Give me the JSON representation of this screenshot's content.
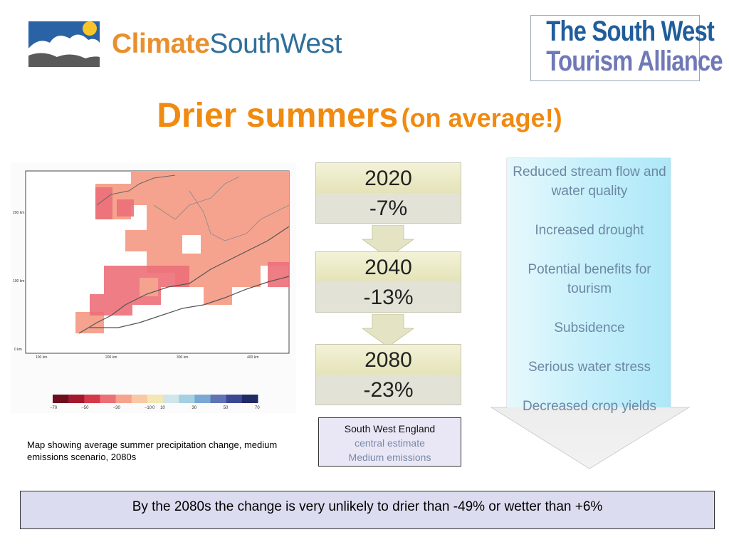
{
  "header": {
    "logo_left_part1": "Climate",
    "logo_left_part2": "SouthWest",
    "logo_right_line1": "The South West",
    "logo_right_line2": "Tourism Alliance"
  },
  "title": {
    "main": "Drier summers",
    "sub": "(on average!)"
  },
  "map": {
    "y_ticks": [
      "200 km",
      "100 km",
      "0 km"
    ],
    "x_ticks": [
      "100 km",
      "200 km",
      "300 km",
      "400 km"
    ],
    "colorbar_ticks": [
      "−70",
      "−50",
      "−30",
      "−10",
      "0",
      "10",
      "30",
      "50",
      "70"
    ],
    "colorbar_colors": [
      "#6e0d1e",
      "#a3182c",
      "#d4394a",
      "#ec6f78",
      "#f5a38e",
      "#f8c9a4",
      "#f2e7b5",
      "#cfe6ea",
      "#a7cfe2",
      "#7aa8d2",
      "#5e74b4",
      "#3d4894",
      "#202a63"
    ],
    "caption": "Map showing average summer precipitation change, medium emissions scenario, 2080s"
  },
  "timeline": [
    {
      "year": "2020",
      "change": "-7%"
    },
    {
      "year": "2040",
      "change": "-13%"
    },
    {
      "year": "2080",
      "change": "-23%"
    }
  ],
  "scenario_box": {
    "region": "South West England",
    "estimate": "central estimate",
    "emissions": "Medium emissions"
  },
  "consequences": [
    "Reduced stream flow and water quality",
    "Increased drought",
    "Potential benefits for tourism",
    "Subsidence",
    "Serious water stress",
    "Decreased crop yields"
  ],
  "banner": "By the 2080s the change is very unlikely to drier than -49% or wetter than  +6%",
  "colors": {
    "title": "#f08a10",
    "consequence_text": "#6d87a3",
    "arrow_fill": "#bfeef8"
  }
}
